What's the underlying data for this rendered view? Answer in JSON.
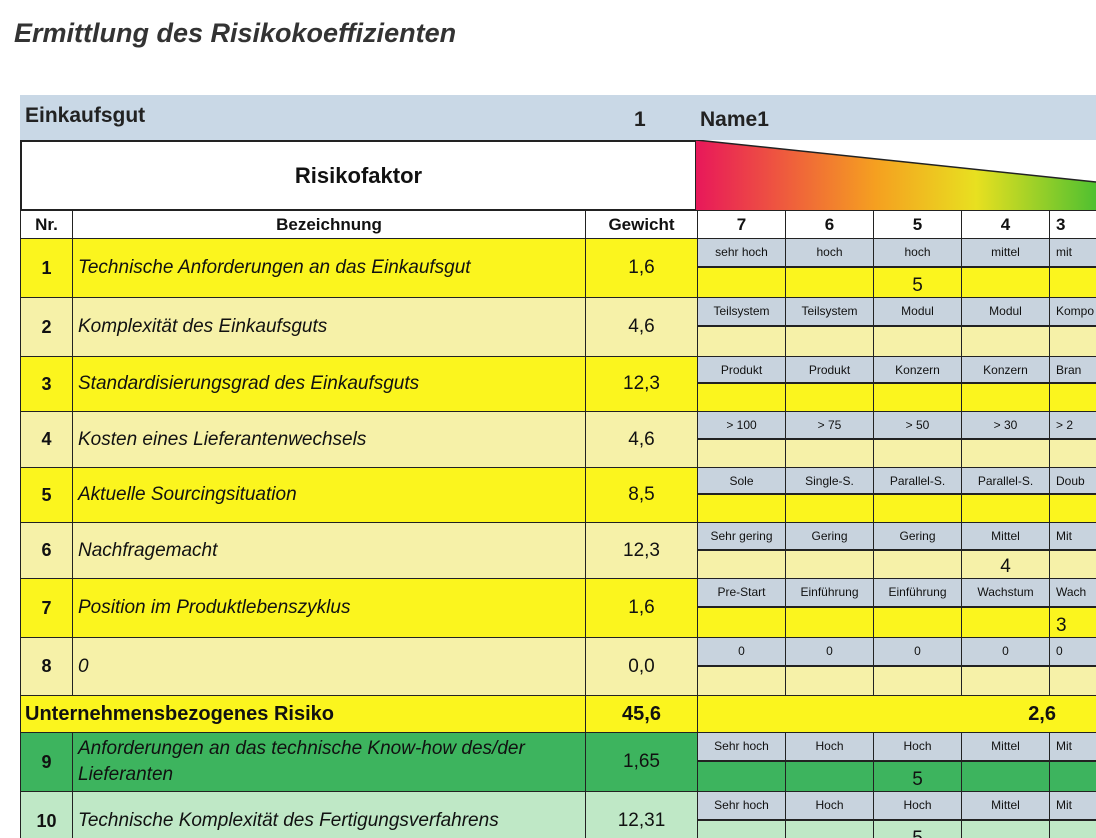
{
  "title": "Ermittlung des Risikokoeffizienten",
  "header": {
    "label": "Einkaufsgut",
    "number": "1",
    "name": "Name1",
    "factor": "Risikofaktor"
  },
  "columns": {
    "nr": "Nr.",
    "label": "Bezeichnung",
    "weight": "Gewicht",
    "scale": [
      "7",
      "6",
      "5",
      "4",
      "3"
    ]
  },
  "rows": [
    {
      "nr": "1",
      "label": "Technische Anforderungen an das Einkaufsgut",
      "weight": "1,6",
      "levels": [
        "sehr hoch",
        "hoch",
        "hoch",
        "mittel",
        "mit"
      ],
      "ratings": [
        null,
        null,
        "5",
        null,
        null
      ]
    },
    {
      "nr": "2",
      "label": "Komplexität des Einkaufsguts",
      "weight": "4,6",
      "levels": [
        "Teilsystem",
        "Teilsystem",
        "Modul",
        "Modul",
        "Kompo"
      ],
      "ratings": [
        null,
        null,
        null,
        null,
        null
      ]
    },
    {
      "nr": "3",
      "label": "Standardisierungsgrad des Einkaufsguts",
      "weight": "12,3",
      "levels": [
        "Produkt",
        "Produkt",
        "Konzern",
        "Konzern",
        "Bran"
      ],
      "ratings": [
        null,
        null,
        null,
        null,
        null
      ]
    },
    {
      "nr": "4",
      "label": "Kosten eines Lieferantenwechsels",
      "weight": "4,6",
      "levels": [
        "> 100",
        "> 75",
        "> 50",
        "> 30",
        "> 2"
      ],
      "ratings": [
        null,
        null,
        null,
        null,
        null
      ]
    },
    {
      "nr": "5",
      "label": "Aktuelle Sourcingsituation",
      "weight": "8,5",
      "levels": [
        "Sole",
        "Single-S.",
        "Parallel-S.",
        "Parallel-S.",
        "Doub"
      ],
      "ratings": [
        null,
        null,
        null,
        null,
        null
      ]
    },
    {
      "nr": "6",
      "label": "Nachfragemacht",
      "weight": "12,3",
      "levels": [
        "Sehr gering",
        "Gering",
        "Gering",
        "Mittel",
        "Mit"
      ],
      "ratings": [
        null,
        null,
        null,
        "4",
        null
      ]
    },
    {
      "nr": "7",
      "label": "Position im Produktlebenszyklus",
      "weight": "1,6",
      "levels": [
        "Pre-Start",
        "Einführung",
        "Einführung",
        "Wachstum",
        "Wach"
      ],
      "ratings": [
        null,
        null,
        null,
        null,
        "3"
      ]
    },
    {
      "nr": "8",
      "label": "0",
      "weight": "0,0",
      "levels": [
        "0",
        "0",
        "0",
        "0",
        "0"
      ],
      "ratings": [
        null,
        null,
        null,
        null,
        null
      ]
    }
  ],
  "summary": {
    "label": "Unternehmensbezogenes Risiko",
    "weight": "45,6",
    "score": "2,6"
  },
  "rows2": [
    {
      "nr": "9",
      "label": "Anforderungen an das technische Know-how des/der Lieferanten",
      "weight": "1,65",
      "levels": [
        "Sehr hoch",
        "Hoch",
        "Hoch",
        "Mittel",
        "Mit"
      ],
      "ratings": [
        null,
        null,
        "5",
        null,
        null
      ]
    },
    {
      "nr": "10",
      "label": "Technische Komplexität des Fertigungsverfahrens",
      "weight": "12,31",
      "levels": [
        "Sehr hoch",
        "Hoch",
        "Hoch",
        "Mittel",
        "Mit"
      ],
      "ratings": [
        null,
        null,
        "5",
        null,
        null
      ]
    }
  ]
}
